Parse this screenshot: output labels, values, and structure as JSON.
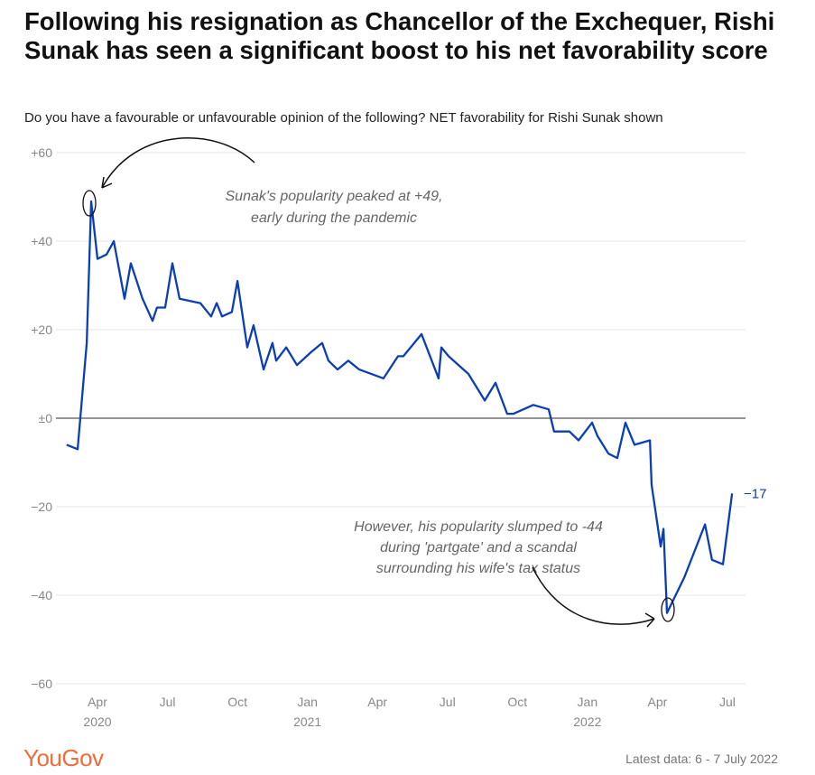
{
  "chart_data": {
    "type": "line",
    "title": "Following his resignation as Chancellor of the Exchequer, Rishi Sunak has seen a significant boost to his net favorability score",
    "subtitle": "Do you have a favourable or unfavourable opinion of the following? NET favorability for Rishi Sunak shown",
    "ylim": [
      -60,
      60
    ],
    "yticks": [
      {
        "v": 60,
        "label": "+60"
      },
      {
        "v": 40,
        "label": "+40"
      },
      {
        "v": 20,
        "label": "+20"
      },
      {
        "v": 0,
        "label": "±0"
      },
      {
        "v": -20,
        "label": "−20"
      },
      {
        "v": -40,
        "label": "−40"
      },
      {
        "v": -60,
        "label": "−60"
      }
    ],
    "x_unit": "months since Jan 2020",
    "xticks": [
      {
        "m": 3,
        "label": "Apr",
        "year": "2020"
      },
      {
        "m": 6,
        "label": "Jul"
      },
      {
        "m": 9,
        "label": "Oct"
      },
      {
        "m": 12,
        "label": "Jan",
        "year": "2021"
      },
      {
        "m": 15,
        "label": "Apr"
      },
      {
        "m": 18,
        "label": "Jul"
      },
      {
        "m": 21,
        "label": "Oct"
      },
      {
        "m": 24,
        "label": "Jan",
        "year": "2022"
      },
      {
        "m": 27,
        "label": "Apr"
      },
      {
        "m": 30,
        "label": "Jul"
      }
    ],
    "series": [
      {
        "name": "Rishi Sunak net favorability",
        "color": "#0a3fb5",
        "x": [
          1.68,
          2.15,
          2.54,
          2.73,
          3.0,
          3.39,
          3.7,
          4.16,
          4.43,
          4.93,
          5.36,
          5.55,
          5.9,
          6.21,
          6.52,
          7.41,
          7.87,
          8.11,
          8.34,
          8.76,
          9.0,
          9.42,
          9.69,
          10.12,
          10.5,
          10.66,
          11.09,
          11.55,
          12.17,
          12.63,
          12.9,
          13.29,
          13.75,
          14.22,
          15.26,
          15.88,
          16.11,
          16.89,
          17.62,
          17.74,
          18.05,
          18.9,
          19.6,
          20.06,
          20.56,
          20.83,
          21.68,
          22.34,
          22.57,
          23.23,
          23.62,
          24.2,
          24.43,
          24.9,
          25.28,
          25.63,
          26.02,
          26.68,
          26.75,
          27.14,
          27.26,
          27.41,
          28.15,
          29.04,
          29.34,
          29.81,
          30.2
        ],
        "values": [
          -6,
          -7,
          17,
          49,
          36,
          37,
          40,
          27,
          35,
          27,
          22,
          25,
          25,
          35,
          27,
          26,
          23,
          26,
          23,
          24,
          31,
          16,
          21,
          11,
          17,
          13,
          16,
          12,
          15,
          17,
          13,
          11,
          13,
          11,
          9,
          14,
          14,
          19,
          9,
          16,
          14,
          10,
          4,
          8,
          1,
          1,
          3,
          2,
          -3,
          -3,
          -5,
          -1,
          -4,
          -8,
          -9,
          -1,
          -6,
          -5,
          -15,
          -29,
          -25,
          -44,
          -36,
          -24,
          -32,
          -33,
          -17
        ]
      }
    ],
    "end_label": "−17",
    "annotations": [
      {
        "lines": [
          "Sunak's popularity peaked at +49,",
          "early during the pandemic"
        ]
      },
      {
        "lines": [
          "However, his popularity slumped to -44",
          "during 'partgate' and a scandal",
          "surrounding his wife's tax status"
        ]
      }
    ]
  },
  "footer": {
    "logo": "YouGov",
    "latest": "Latest data: 6 - 7 July 2022"
  }
}
